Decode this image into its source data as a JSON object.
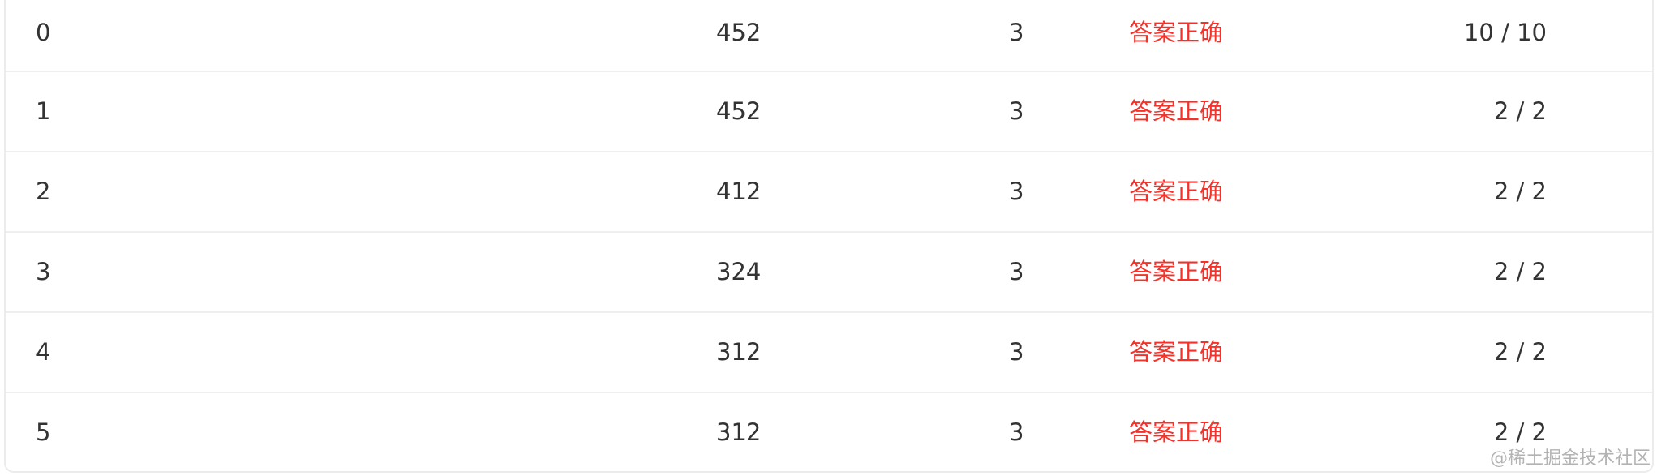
{
  "table": {
    "rows": [
      {
        "index": "0",
        "score": "452",
        "count": "3",
        "status": "答案正确",
        "pass": "10 / 10"
      },
      {
        "index": "1",
        "score": "452",
        "count": "3",
        "status": "答案正确",
        "pass": "2 / 2"
      },
      {
        "index": "2",
        "score": "412",
        "count": "3",
        "status": "答案正确",
        "pass": "2 / 2"
      },
      {
        "index": "3",
        "score": "324",
        "count": "3",
        "status": "答案正确",
        "pass": "2 / 2"
      },
      {
        "index": "4",
        "score": "312",
        "count": "3",
        "status": "答案正确",
        "pass": "2 / 2"
      },
      {
        "index": "5",
        "score": "312",
        "count": "3",
        "status": "答案正确",
        "pass": "2 / 2"
      }
    ]
  },
  "status_color": "#f5312a",
  "watermark": "@稀土掘金技术社区"
}
